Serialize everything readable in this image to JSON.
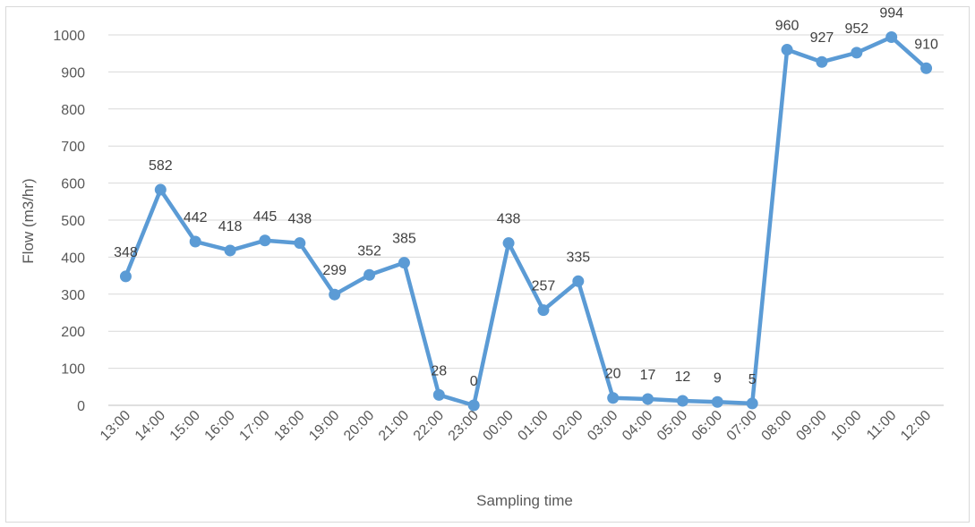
{
  "chart_data": {
    "type": "line",
    "title": "",
    "xlabel": "Sampling time",
    "ylabel": "Flow (m3/hr)",
    "ylim": [
      0,
      1000
    ],
    "yticks": [
      "0",
      "100",
      "200",
      "300",
      "400",
      "500",
      "600",
      "700",
      "800",
      "900",
      "1000"
    ],
    "grid": true,
    "legend": "none",
    "color": "#5b9bd5",
    "categories": [
      "13:00",
      "14:00",
      "15:00",
      "16:00",
      "17:00",
      "18:00",
      "19:00",
      "20:00",
      "21:00",
      "22:00",
      "23:00",
      "00:00",
      "01:00",
      "02:00",
      "03:00",
      "04:00",
      "05:00",
      "06:00",
      "07:00",
      "08:00",
      "09:00",
      "10:00",
      "11:00",
      "12:00"
    ],
    "values": [
      348,
      582,
      442,
      418,
      445,
      438,
      299,
      352,
      385,
      28,
      0,
      438,
      257,
      335,
      20,
      17,
      12,
      9,
      5,
      960,
      927,
      952,
      994,
      910
    ],
    "data_labels": [
      "348",
      "582",
      "442",
      "418",
      "445",
      "438",
      "299",
      "352",
      "385",
      "28",
      "0",
      "438",
      "257",
      "335",
      "20",
      "17",
      "12",
      "9",
      "5",
      "960",
      "927",
      "952",
      "994",
      "910"
    ]
  }
}
